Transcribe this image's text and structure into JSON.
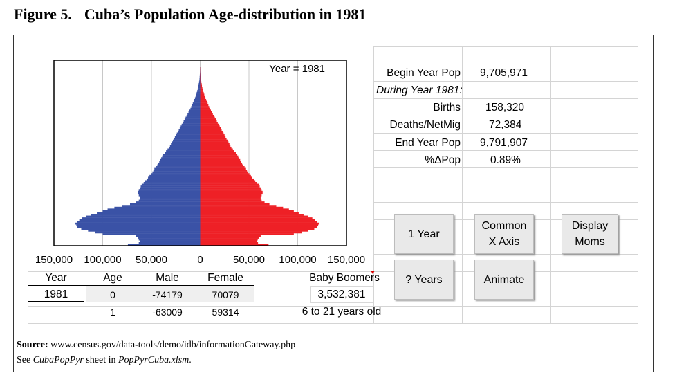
{
  "figure": {
    "label": "Figure 5.",
    "title": "Cuba’s Population Age-distribution in 1981"
  },
  "stats": {
    "begin_label": "Begin Year Pop",
    "begin_value": "9,705,971",
    "during_label": "During Year 1981:",
    "births_label": "Births",
    "births_value": "158,320",
    "deaths_label": "Deaths/NetMig",
    "deaths_value": "72,384",
    "end_label": "End Year Pop",
    "end_value": "9,791,907",
    "pct_label": "%ΔPop",
    "pct_value": "0.89%"
  },
  "buttons": {
    "one_year": "1 Year",
    "common_x_1": "Common",
    "common_x_2": "X Axis",
    "display_moms_1": "Display",
    "display_moms_2": "Moms",
    "n_years": "? Years",
    "animate": "Animate"
  },
  "table": {
    "year_header": "Year",
    "age_header": "Age",
    "male_header": "Male",
    "female_header": "Female",
    "year_value": "1981",
    "rows": [
      {
        "age": "0",
        "male": "-74179",
        "female": "70079"
      },
      {
        "age": "1",
        "male": "-63009",
        "female": "59314"
      }
    ]
  },
  "boomers": {
    "label": "Baby Boomers",
    "value": "3,532,381",
    "range": "6 to 21 years old"
  },
  "source": {
    "label": "Source:",
    "url": " www.census.gov/data-tools/demo/idb/informationGateway.php",
    "line2_a": "See ",
    "sheet": "CubaPopPyr",
    "line2_b": " sheet in ",
    "file": "PopPyrCuba.xlsm",
    "line2_c": "."
  },
  "chart_data": {
    "type": "bar",
    "orientation": "horizontal",
    "annotation": "Year = 1981",
    "xlim": [
      -150000,
      150000
    ],
    "x_tick_labels": [
      "150,000",
      "100,000",
      "50,000",
      "0",
      "50,000",
      "100,000",
      "150,000"
    ],
    "y_axis": "age (single years, 0 at bottom)",
    "grid": true,
    "colors": {
      "male": "#3a52a6",
      "female": "#ee2026"
    },
    "series": [
      {
        "key": "male",
        "ages": [
          0,
          1,
          2,
          3,
          4,
          5,
          6,
          7,
          8,
          9,
          10,
          11,
          12,
          13,
          14,
          15,
          16,
          17,
          18,
          19,
          20,
          21,
          22,
          23,
          24,
          25,
          26,
          27,
          28,
          29,
          30,
          31,
          32,
          33,
          34,
          35,
          36,
          37,
          38,
          39,
          40,
          41,
          42,
          43,
          44,
          45,
          46,
          47,
          48,
          49,
          50,
          51,
          52,
          53,
          54,
          55,
          56,
          57,
          58,
          59,
          60,
          61,
          62,
          63,
          64,
          65,
          66,
          67,
          68,
          69,
          70,
          71,
          72,
          73,
          74,
          75,
          76,
          77,
          78,
          79,
          80,
          81,
          82,
          83,
          84,
          85,
          86,
          87,
          88,
          89,
          90,
          91,
          92,
          93,
          94,
          95,
          96,
          97,
          98,
          99,
          100
        ],
        "values": [
          -74179,
          -63009,
          -62000,
          -63000,
          -64000,
          -66000,
          -100000,
          -108000,
          -115000,
          -122000,
          -126000,
          -127000,
          -128000,
          -126000,
          -124000,
          -121000,
          -117000,
          -112000,
          -106000,
          -100000,
          -95000,
          -88000,
          -80000,
          -72000,
          -66000,
          -63000,
          -62000,
          -62000,
          -63000,
          -64000,
          -64000,
          -63000,
          -62000,
          -61000,
          -60000,
          -58000,
          -56500,
          -55000,
          -53500,
          -52000,
          -50500,
          -49000,
          -48000,
          -47000,
          -45500,
          -44000,
          -43000,
          -42000,
          -41000,
          -40000,
          -39000,
          -38000,
          -36500,
          -35000,
          -33500,
          -32000,
          -31000,
          -30000,
          -29000,
          -28000,
          -27000,
          -26000,
          -25000,
          -24000,
          -23000,
          -22000,
          -21000,
          -20000,
          -19000,
          -18000,
          -17000,
          -16000,
          -15000,
          -14000,
          -13000,
          -12000,
          -11000,
          -10000,
          -9200,
          -8400,
          -7600,
          -6800,
          -6100,
          -5400,
          -4800,
          -4200,
          -3600,
          -3100,
          -2600,
          -2200,
          -1800,
          -1500,
          -1200,
          -900,
          -700,
          -550,
          -400,
          -300,
          -200,
          -120,
          -60
        ]
      },
      {
        "key": "female",
        "ages": [
          0,
          1,
          2,
          3,
          4,
          5,
          6,
          7,
          8,
          9,
          10,
          11,
          12,
          13,
          14,
          15,
          16,
          17,
          18,
          19,
          20,
          21,
          22,
          23,
          24,
          25,
          26,
          27,
          28,
          29,
          30,
          31,
          32,
          33,
          34,
          35,
          36,
          37,
          38,
          39,
          40,
          41,
          42,
          43,
          44,
          45,
          46,
          47,
          48,
          49,
          50,
          51,
          52,
          53,
          54,
          55,
          56,
          57,
          58,
          59,
          60,
          61,
          62,
          63,
          64,
          65,
          66,
          67,
          68,
          69,
          70,
          71,
          72,
          73,
          74,
          75,
          76,
          77,
          78,
          79,
          80,
          81,
          82,
          83,
          84,
          85,
          86,
          87,
          88,
          89,
          90,
          91,
          92,
          93,
          94,
          95,
          96,
          97,
          98,
          99,
          100
        ],
        "values": [
          70079,
          59314,
          58000,
          59000,
          60000,
          62000,
          96000,
          104000,
          111000,
          117000,
          120000,
          121000,
          122000,
          120000,
          118000,
          115000,
          111000,
          106000,
          101000,
          96000,
          91000,
          85000,
          78000,
          71000,
          66000,
          63000,
          62000,
          62000,
          63000,
          64000,
          64000,
          63000,
          62000,
          61000,
          60000,
          58000,
          56500,
          55000,
          53500,
          52000,
          50500,
          49000,
          48000,
          47000,
          45500,
          44000,
          43000,
          42000,
          41000,
          40000,
          39000,
          38000,
          36500,
          35000,
          33500,
          32000,
          31000,
          30000,
          29000,
          28000,
          27000,
          26000,
          25000,
          24000,
          23000,
          22000,
          21000,
          20000,
          19000,
          18000,
          17000,
          16000,
          15000,
          14000,
          13000,
          12000,
          11000,
          10000,
          9200,
          8400,
          7600,
          6800,
          6100,
          5400,
          4800,
          4200,
          3600,
          3100,
          2600,
          2200,
          1800,
          1500,
          1200,
          900,
          700,
          550,
          400,
          300,
          200,
          120,
          60
        ]
      }
    ]
  }
}
